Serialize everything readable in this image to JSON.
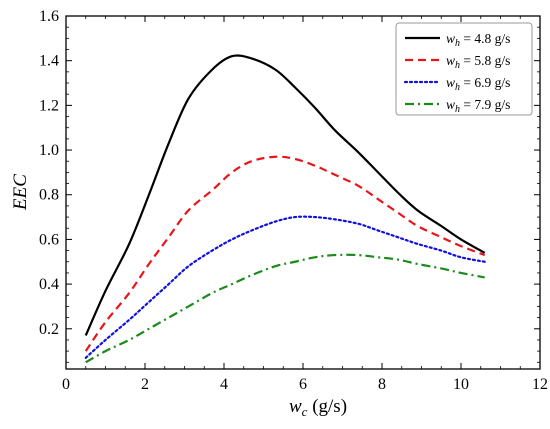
{
  "chart_data": {
    "type": "line",
    "title": "",
    "xlabel": {
      "var": "w",
      "sub": "c",
      "unit": " (g/s)"
    },
    "ylabel": "EEC",
    "xlim": [
      0,
      12
    ],
    "ylim": [
      0.02,
      1.6
    ],
    "xticks": [
      0,
      2,
      4,
      6,
      8,
      10,
      12
    ],
    "yticks": [
      0.2,
      0.4,
      0.6,
      0.8,
      1.0,
      1.2,
      1.4,
      1.6
    ],
    "xtick_labels": [
      "0",
      "2",
      "4",
      "6",
      "8",
      "10",
      "12"
    ],
    "ytick_labels": [
      "0.2",
      "0.4",
      "0.6",
      "0.8",
      "1.0",
      "1.2",
      "1.4",
      "1.6"
    ],
    "grid": false,
    "legend_position": "top-right",
    "series": [
      {
        "legend": {
          "var": "w",
          "sub": "h",
          "eq": " = 4.8 g/s"
        },
        "color": "#000000",
        "dash": "solid",
        "x": [
          0.5,
          1.0,
          1.6,
          2.1,
          2.6,
          3.1,
          3.7,
          4.2,
          4.7,
          5.3,
          5.8,
          6.3,
          6.8,
          7.4,
          7.9,
          8.4,
          8.9,
          9.5,
          10.0,
          10.6
        ],
        "y": [
          0.17,
          0.37,
          0.58,
          0.8,
          1.03,
          1.23,
          1.36,
          1.42,
          1.41,
          1.36,
          1.28,
          1.19,
          1.09,
          0.99,
          0.9,
          0.81,
          0.73,
          0.66,
          0.6,
          0.54
        ]
      },
      {
        "legend": {
          "var": "w",
          "sub": "h",
          "eq": " = 5.8 g/s"
        },
        "color": "#e8151b",
        "dash": "dashed",
        "x": [
          0.5,
          1.0,
          1.6,
          2.1,
          2.6,
          3.1,
          3.7,
          4.2,
          4.7,
          5.3,
          5.8,
          6.3,
          6.8,
          7.4,
          7.9,
          8.4,
          8.9,
          9.5,
          10.0,
          10.6
        ],
        "y": [
          0.1,
          0.23,
          0.36,
          0.49,
          0.61,
          0.73,
          0.82,
          0.9,
          0.95,
          0.97,
          0.96,
          0.93,
          0.89,
          0.84,
          0.78,
          0.72,
          0.66,
          0.61,
          0.57,
          0.53
        ]
      },
      {
        "legend": {
          "var": "w",
          "sub": "h",
          "eq": " = 6.9 g/s"
        },
        "color": "#1010e0",
        "dash": "dotted",
        "x": [
          0.5,
          1.0,
          1.6,
          2.1,
          2.6,
          3.1,
          3.7,
          4.2,
          4.7,
          5.3,
          5.8,
          6.3,
          6.8,
          7.4,
          7.9,
          8.4,
          8.9,
          9.5,
          10.0,
          10.6
        ],
        "y": [
          0.07,
          0.15,
          0.24,
          0.32,
          0.4,
          0.48,
          0.55,
          0.6,
          0.64,
          0.68,
          0.7,
          0.7,
          0.69,
          0.67,
          0.64,
          0.61,
          0.58,
          0.55,
          0.52,
          0.5
        ]
      },
      {
        "legend": {
          "var": "w",
          "sub": "h",
          "eq": " = 7.9 g/s"
        },
        "color": "#1a8a1a",
        "dash": "dashdot",
        "x": [
          0.5,
          1.0,
          1.6,
          2.1,
          2.6,
          3.1,
          3.7,
          4.2,
          4.7,
          5.3,
          5.8,
          6.3,
          6.8,
          7.4,
          7.9,
          8.4,
          8.9,
          9.5,
          10.0,
          10.6
        ],
        "y": [
          0.05,
          0.1,
          0.15,
          0.2,
          0.25,
          0.3,
          0.36,
          0.4,
          0.44,
          0.48,
          0.5,
          0.52,
          0.53,
          0.53,
          0.52,
          0.51,
          0.49,
          0.47,
          0.45,
          0.43
        ]
      }
    ]
  }
}
